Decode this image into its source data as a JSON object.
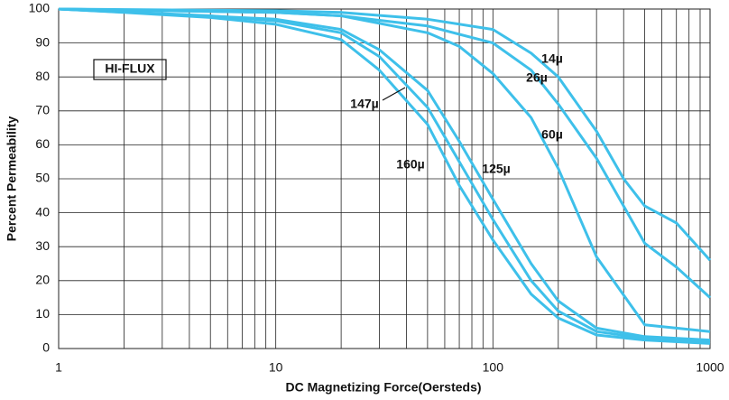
{
  "chart_data": {
    "type": "line",
    "x_label": "DC Magnetizing Force(Oersteds)",
    "y_label": "Percent Permeability",
    "annotation": "HI-FLUX",
    "xscale": "log",
    "grid": true,
    "xlim": [
      1,
      1000
    ],
    "xticks": [
      1,
      10,
      100,
      1000
    ],
    "ylim": [
      0,
      100
    ],
    "yticks": [
      0,
      10,
      20,
      30,
      40,
      50,
      60,
      70,
      80,
      90,
      100
    ],
    "series": [
      {
        "name": "14µ",
        "color": "#3ec0ea",
        "x": [
          1,
          10,
          20,
          50,
          100,
          150,
          200,
          300,
          400,
          500,
          700,
          1000
        ],
        "values": [
          100,
          99.5,
          99,
          97,
          94,
          87,
          80,
          64,
          50,
          42,
          37,
          26
        ]
      },
      {
        "name": "26µ",
        "color": "#3ec0ea",
        "x": [
          1,
          10,
          20,
          50,
          100,
          150,
          200,
          300,
          500,
          700,
          1000
        ],
        "values": [
          100,
          99,
          98,
          95,
          90,
          82,
          72,
          56,
          31,
          24,
          15
        ]
      },
      {
        "name": "60µ",
        "color": "#3ec0ea",
        "x": [
          1,
          10,
          20,
          50,
          70,
          100,
          150,
          200,
          300,
          500,
          700,
          1000
        ],
        "values": [
          100,
          99,
          98,
          93,
          89,
          81,
          68,
          53,
          27,
          7,
          6,
          5
        ]
      },
      {
        "name": "125µ",
        "color": "#3ec0ea",
        "x": [
          1,
          10,
          20,
          30,
          50,
          70,
          100,
          150,
          200,
          300,
          500,
          1000
        ],
        "values": [
          100,
          97,
          94,
          88,
          76,
          61,
          44,
          25,
          14,
          6,
          3.5,
          2.5
        ]
      },
      {
        "name": "147µ",
        "color": "#3ec0ea",
        "x": [
          1,
          5,
          10,
          20,
          30,
          50,
          70,
          100,
          150,
          200,
          300,
          500,
          1000
        ],
        "values": [
          100,
          98,
          96.5,
          93,
          86,
          71,
          55,
          38,
          20,
          11,
          5,
          3,
          2
        ]
      },
      {
        "name": "160µ",
        "color": "#3ec0ea",
        "x": [
          1,
          2,
          5,
          10,
          20,
          30,
          50,
          70,
          100,
          150,
          200,
          300,
          500,
          1000
        ],
        "values": [
          100,
          99,
          97.5,
          95.5,
          91,
          82,
          66,
          48,
          32,
          16,
          9,
          4,
          2.5,
          1.5
        ]
      }
    ]
  }
}
